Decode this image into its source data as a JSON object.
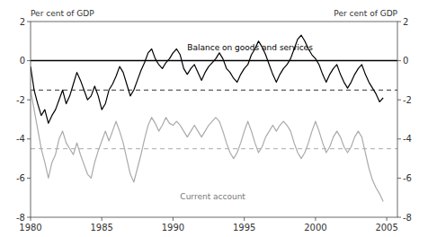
{
  "chart_data": {
    "type": "line",
    "ylabel": "Per cent of GDP",
    "y2label": "Per cent of GDP",
    "x": [
      1980,
      1980.25,
      1980.5,
      1980.75,
      1981,
      1981.25,
      1981.5,
      1981.75,
      1982,
      1982.25,
      1982.5,
      1982.75,
      1983,
      1983.25,
      1983.5,
      1983.75,
      1984,
      1984.25,
      1984.5,
      1984.75,
      1985,
      1985.25,
      1985.5,
      1985.75,
      1986,
      1986.25,
      1986.5,
      1986.75,
      1987,
      1987.25,
      1987.5,
      1987.75,
      1988,
      1988.25,
      1988.5,
      1988.75,
      1989,
      1989.25,
      1989.5,
      1989.75,
      1990,
      1990.25,
      1990.5,
      1990.75,
      1991,
      1991.25,
      1991.5,
      1991.75,
      1992,
      1992.25,
      1992.5,
      1992.75,
      1993,
      1993.25,
      1993.5,
      1993.75,
      1994,
      1994.25,
      1994.5,
      1994.75,
      1995,
      1995.25,
      1995.5,
      1995.75,
      1996,
      1996.25,
      1996.5,
      1996.75,
      1997,
      1997.25,
      1997.5,
      1997.75,
      1998,
      1998.25,
      1998.5,
      1998.75,
      1999,
      1999.25,
      1999.5,
      1999.75,
      2000,
      2000.25,
      2000.5,
      2000.75,
      2001,
      2001.25,
      2001.5,
      2001.75,
      2002,
      2002.25,
      2002.5,
      2002.75,
      2003,
      2003.25,
      2003.5,
      2003.75,
      2004,
      2004.25,
      2004.5,
      2004.75
    ],
    "xlim": [
      1980.0,
      2005.75
    ],
    "xticks": [
      1980,
      1985,
      1990,
      1995,
      2000,
      2005
    ],
    "ylim": [
      -8,
      2
    ],
    "yticks": [
      -8,
      -6,
      -4,
      -2,
      0,
      2
    ],
    "y2lim": [
      -8,
      2
    ],
    "y2ticks": [
      -8,
      -6,
      -4,
      -2,
      0,
      2
    ],
    "series": [
      {
        "color": "#000000",
        "values": [
          -0.3,
          -1.5,
          -2.2,
          -2.8,
          -2.5,
          -3.2,
          -2.8,
          -2.5,
          -2.0,
          -1.5,
          -2.2,
          -1.8,
          -1.2,
          -0.6,
          -1.0,
          -1.5,
          -2.0,
          -1.8,
          -1.3,
          -1.8,
          -2.5,
          -2.2,
          -1.5,
          -1.2,
          -0.8,
          -0.3,
          -0.6,
          -1.2,
          -1.8,
          -1.5,
          -1.0,
          -0.5,
          -0.1,
          0.4,
          0.6,
          0.1,
          -0.2,
          -0.4,
          -0.1,
          0.1,
          0.4,
          0.6,
          0.3,
          -0.4,
          -0.7,
          -0.4,
          -0.2,
          -0.6,
          -1.0,
          -0.6,
          -0.3,
          -0.1,
          0.1,
          0.4,
          0.1,
          -0.4,
          -0.6,
          -0.9,
          -1.1,
          -0.7,
          -0.4,
          -0.2,
          0.3,
          0.6,
          1.0,
          0.7,
          0.3,
          -0.2,
          -0.7,
          -1.1,
          -0.7,
          -0.4,
          -0.2,
          0.1,
          0.6,
          1.1,
          1.3,
          1.0,
          0.6,
          0.3,
          0.1,
          -0.2,
          -0.7,
          -1.1,
          -0.7,
          -0.4,
          -0.2,
          -0.7,
          -1.1,
          -1.4,
          -1.1,
          -0.7,
          -0.4,
          -0.2,
          -0.7,
          -1.1,
          -1.4,
          -1.7,
          -2.1,
          -1.9
        ]
      },
      {
        "color": "#aaaaaa",
        "values": [
          -1.5,
          -2.5,
          -3.5,
          -4.5,
          -5.2,
          -6.0,
          -5.2,
          -4.8,
          -4.0,
          -3.6,
          -4.2,
          -4.5,
          -4.8,
          -4.2,
          -4.8,
          -5.3,
          -5.8,
          -6.0,
          -5.2,
          -4.6,
          -4.1,
          -3.6,
          -4.1,
          -3.6,
          -3.1,
          -3.6,
          -4.2,
          -5.0,
          -5.8,
          -6.2,
          -5.5,
          -4.8,
          -4.0,
          -3.3,
          -2.9,
          -3.2,
          -3.6,
          -3.3,
          -2.9,
          -3.2,
          -3.3,
          -3.1,
          -3.3,
          -3.6,
          -3.9,
          -3.6,
          -3.3,
          -3.6,
          -3.9,
          -3.6,
          -3.3,
          -3.1,
          -2.9,
          -3.1,
          -3.6,
          -4.2,
          -4.7,
          -5.0,
          -4.7,
          -4.2,
          -3.6,
          -3.1,
          -3.6,
          -4.2,
          -4.7,
          -4.4,
          -3.9,
          -3.6,
          -3.3,
          -3.6,
          -3.3,
          -3.1,
          -3.3,
          -3.6,
          -4.2,
          -4.7,
          -5.0,
          -4.7,
          -4.2,
          -3.6,
          -3.1,
          -3.6,
          -4.2,
          -4.7,
          -4.4,
          -3.9,
          -3.6,
          -3.9,
          -4.4,
          -4.7,
          -4.4,
          -3.9,
          -3.6,
          -3.9,
          -4.7,
          -5.5,
          -6.1,
          -6.5,
          -6.8,
          -7.2
        ]
      }
    ],
    "reference_lines": [
      {
        "value": -1.5,
        "color": "#333333",
        "line_style": "dashed"
      },
      {
        "value": -4.5,
        "color": "#aaaaaa",
        "line_style": "dashed"
      },
      {
        "value": 0,
        "color": "#000000",
        "line_style": "solid"
      }
    ],
    "annotations": [
      {
        "text": "Balance on goods and services",
        "x": 1991.0,
        "y": 0.55,
        "color": "#000000"
      },
      {
        "text": "Current account",
        "x": 1990.5,
        "y": -7.1,
        "color": "#777777"
      }
    ]
  }
}
